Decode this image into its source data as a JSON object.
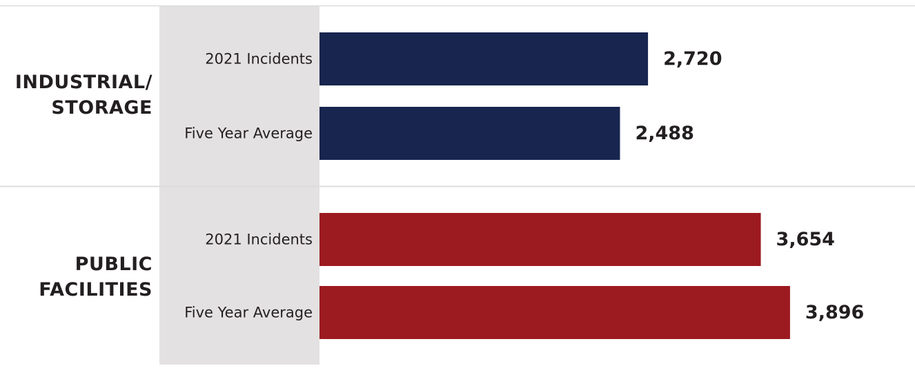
{
  "chart_data": {
    "type": "bar",
    "orientation": "horizontal",
    "title": "",
    "xlabel": "",
    "ylabel": "",
    "grid": false,
    "legend": "none",
    "groups": [
      {
        "name_lines": [
          "INDUSTRIAL/",
          "STORAGE"
        ],
        "color": "#18254f",
        "bars": [
          {
            "label": "2021 Incidents",
            "value": 2720,
            "display": "2,720"
          },
          {
            "label": "Five Year Average",
            "value": 2488,
            "display": "2,488"
          }
        ]
      },
      {
        "name_lines": [
          "PUBLIC",
          "FACILITIES"
        ],
        "color": "#9c1b20",
        "bars": [
          {
            "label": "2021 Incidents",
            "value": 3654,
            "display": "3,654"
          },
          {
            "label": "Five Year Average",
            "value": 3896,
            "display": "3,896"
          }
        ]
      }
    ]
  },
  "colors": {
    "label_panel": "#e3e1e1",
    "divider": "#dcdcdc",
    "text": "#231f20"
  }
}
